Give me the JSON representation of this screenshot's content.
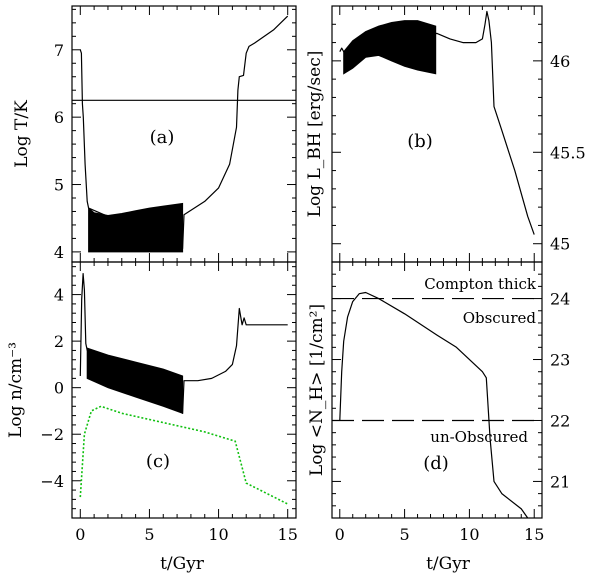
{
  "chart_data": [
    {
      "id": "a",
      "type": "line",
      "panel_label": "(a)",
      "xlabel": "",
      "ylabel": "Log T/K",
      "xlim": [
        -0.6,
        15.6
      ],
      "ylim": [
        3.85,
        7.65
      ],
      "x_ticks": [
        0,
        5,
        10,
        15
      ],
      "y_ticks": [
        4,
        5,
        6,
        7
      ],
      "y_tick_labels": [
        "4",
        "5",
        "6",
        "7"
      ],
      "y_axis_side": "left",
      "reference_lines": [
        {
          "y": 6.25,
          "style": "solid"
        }
      ],
      "band": {
        "x": [
          0.6,
          1.0,
          2.0,
          3.0,
          4.0,
          5.0,
          6.0,
          7.4
        ],
        "y_low": [
          4.0,
          4.0,
          4.0,
          4.0,
          4.0,
          4.0,
          4.0,
          4.0
        ],
        "y_high": [
          4.65,
          4.58,
          4.54,
          4.57,
          4.61,
          4.65,
          4.68,
          4.72
        ]
      },
      "series": [
        {
          "name": "T",
          "style": "solid",
          "points": [
            [
              0.0,
              7.0
            ],
            [
              0.08,
              6.95
            ],
            [
              0.15,
              6.2
            ],
            [
              0.22,
              6.0
            ],
            [
              0.35,
              5.3
            ],
            [
              0.5,
              4.75
            ],
            [
              0.6,
              4.65
            ],
            [
              7.4,
              4.05
            ],
            [
              7.5,
              4.55
            ],
            [
              9.0,
              4.75
            ],
            [
              10.0,
              4.95
            ],
            [
              10.8,
              5.3
            ],
            [
              11.3,
              5.85
            ],
            [
              11.4,
              6.4
            ],
            [
              11.5,
              6.6
            ],
            [
              11.8,
              6.62
            ],
            [
              12.0,
              6.95
            ],
            [
              12.2,
              7.05
            ],
            [
              12.6,
              7.1
            ],
            [
              14.0,
              7.3
            ],
            [
              15.0,
              7.5
            ]
          ]
        }
      ]
    },
    {
      "id": "b",
      "type": "line",
      "panel_label": "(b)",
      "xlabel": "",
      "ylabel": "Log L_BH [erg/sec]",
      "xlim": [
        -0.6,
        15.6
      ],
      "ylim": [
        44.9,
        46.3
      ],
      "x_ticks": [
        0,
        5,
        10,
        15
      ],
      "y_ticks": [
        45,
        45.5,
        46
      ],
      "y_tick_labels": [
        "45",
        "45.5",
        "46"
      ],
      "y_axis_side": "right",
      "band": {
        "x": [
          0.3,
          1.0,
          2.0,
          3.0,
          4.0,
          5.0,
          6.0,
          7.4
        ],
        "y_low": [
          45.93,
          45.96,
          46.02,
          46.03,
          46.0,
          45.97,
          45.95,
          45.93
        ],
        "y_high": [
          46.05,
          46.11,
          46.16,
          46.19,
          46.21,
          46.22,
          46.22,
          46.19
        ]
      },
      "series": [
        {
          "name": "L_BH",
          "style": "solid",
          "points": [
            [
              0.0,
              46.05
            ],
            [
              0.15,
              46.07
            ],
            [
              0.3,
              46.05
            ],
            [
              7.5,
              46.15
            ],
            [
              8.5,
              46.12
            ],
            [
              9.5,
              46.1
            ],
            [
              10.5,
              46.1
            ],
            [
              11.0,
              46.12
            ],
            [
              11.2,
              46.2
            ],
            [
              11.35,
              46.27
            ],
            [
              11.5,
              46.22
            ],
            [
              11.7,
              46.1
            ],
            [
              11.9,
              45.75
            ],
            [
              12.5,
              45.62
            ],
            [
              13.5,
              45.4
            ],
            [
              14.5,
              45.15
            ],
            [
              15.0,
              45.05
            ]
          ]
        }
      ]
    },
    {
      "id": "c",
      "type": "line",
      "panel_label": "(c)",
      "xlabel": "t/Gyr",
      "ylabel": "Log n/cm⁻³",
      "xlim": [
        -0.6,
        15.6
      ],
      "ylim": [
        -5.6,
        5.4
      ],
      "x_ticks": [
        0,
        5,
        10,
        15
      ],
      "x_tick_labels": [
        "0",
        "5",
        "10",
        "15"
      ],
      "y_ticks": [
        -4,
        -2,
        0,
        2,
        4
      ],
      "y_tick_labels": [
        "−4",
        "−2",
        "0",
        "2",
        "4"
      ],
      "y_axis_side": "left",
      "band": {
        "x": [
          0.5,
          2.0,
          4.0,
          6.0,
          7.4
        ],
        "y_low": [
          0.4,
          0.0,
          -0.4,
          -0.8,
          -1.1
        ],
        "y_high": [
          1.7,
          1.4,
          1.1,
          0.8,
          0.5
        ]
      },
      "series": [
        {
          "name": "n",
          "color": "#000000",
          "style": "solid",
          "points": [
            [
              0.0,
              0.5
            ],
            [
              0.1,
              3.8
            ],
            [
              0.2,
              4.9
            ],
            [
              0.3,
              4.2
            ],
            [
              0.4,
              1.9
            ],
            [
              0.5,
              1.6
            ],
            [
              7.4,
              -1.1
            ],
            [
              7.5,
              0.3
            ],
            [
              8.5,
              0.3
            ],
            [
              9.5,
              0.4
            ],
            [
              10.5,
              0.7
            ],
            [
              11.0,
              1.0
            ],
            [
              11.3,
              1.8
            ],
            [
              11.5,
              3.4
            ],
            [
              11.7,
              2.7
            ],
            [
              11.85,
              3.0
            ],
            [
              12.0,
              2.7
            ],
            [
              15.0,
              2.7
            ]
          ]
        },
        {
          "name": "green dotted",
          "color": "#10c010",
          "style": "dotted",
          "points": [
            [
              0.0,
              -4.7
            ],
            [
              0.3,
              -2.0
            ],
            [
              0.8,
              -1.0
            ],
            [
              1.5,
              -0.8
            ],
            [
              3.0,
              -1.1
            ],
            [
              6.0,
              -1.5
            ],
            [
              9.0,
              -1.9
            ],
            [
              11.2,
              -2.3
            ],
            [
              11.6,
              -3.2
            ],
            [
              12.0,
              -4.1
            ],
            [
              15.0,
              -5.0
            ]
          ]
        }
      ]
    },
    {
      "id": "d",
      "type": "line",
      "panel_label": "(d)",
      "xlabel": "t/Gyr",
      "ylabel": "Log <N_H> [1/cm²]",
      "xlim": [
        -0.6,
        15.6
      ],
      "ylim": [
        20.4,
        24.6
      ],
      "x_ticks": [
        0,
        5,
        10,
        15
      ],
      "x_tick_labels": [
        "0",
        "5",
        "10",
        "15"
      ],
      "y_ticks": [
        21,
        22,
        23,
        24
      ],
      "y_tick_labels": [
        "21",
        "22",
        "23",
        "24"
      ],
      "y_axis_side": "right",
      "reference_lines": [
        {
          "y": 24.0,
          "style": "dashed"
        },
        {
          "y": 22.0,
          "style": "dashed"
        }
      ],
      "annotations": [
        "Compton thick",
        "Obscured",
        "un-Obscured"
      ],
      "series": [
        {
          "name": "N_H",
          "style": "solid",
          "points": [
            [
              0.0,
              22.0
            ],
            [
              0.15,
              22.8
            ],
            [
              0.3,
              23.3
            ],
            [
              0.6,
              23.7
            ],
            [
              1.0,
              23.95
            ],
            [
              1.5,
              24.08
            ],
            [
              2.0,
              24.1
            ],
            [
              3.0,
              24.0
            ],
            [
              5.0,
              23.75
            ],
            [
              7.5,
              23.4
            ],
            [
              9.0,
              23.2
            ],
            [
              11.0,
              22.8
            ],
            [
              11.3,
              22.7
            ],
            [
              11.6,
              21.7
            ],
            [
              11.9,
              21.0
            ],
            [
              12.5,
              20.8
            ],
            [
              14.0,
              20.55
            ],
            [
              14.5,
              20.4
            ]
          ]
        }
      ]
    }
  ]
}
